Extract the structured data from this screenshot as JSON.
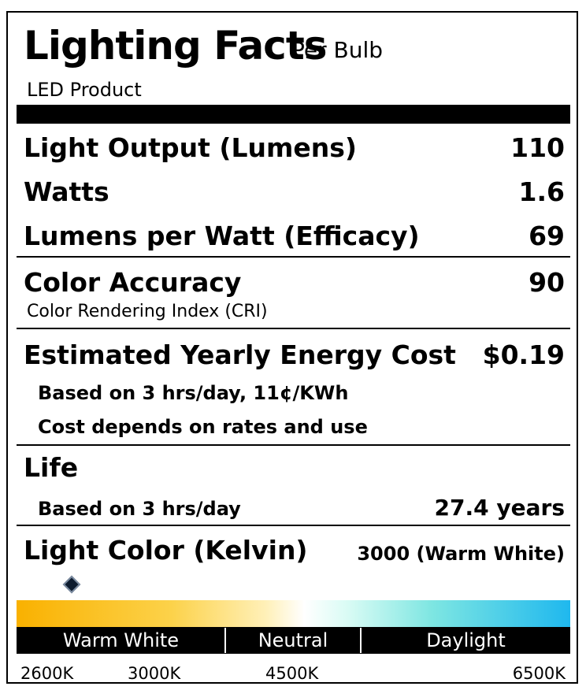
{
  "header": {
    "title": "Lighting Facts",
    "per_bulb": "Per Bulb",
    "product_type": "LED Product"
  },
  "facts": {
    "light_output_label": "Light Output (Lumens)",
    "light_output_value": "110",
    "watts_label": "Watts",
    "watts_value": "1.6",
    "efficacy_label": "Lumens per Watt (Efficacy)",
    "efficacy_value": "69",
    "color_accuracy_label": "Color Accuracy",
    "color_accuracy_value": "90",
    "cri_sublabel": "Color Rendering Index (CRI)",
    "energy_cost_label": "Estimated Yearly Energy Cost",
    "energy_cost_value": "$0.19",
    "energy_cost_note1": "Based on 3 hrs/day, 11¢/KWh",
    "energy_cost_note2": "Cost depends on rates and use",
    "life_label": "Life",
    "life_note": "Based on 3 hrs/day",
    "life_value": "27.4 years",
    "light_color_label": "Light Color (Kelvin)",
    "light_color_value": "3000 (Warm White)"
  },
  "color_scale": {
    "segments": [
      "Warm White",
      "Neutral",
      "Daylight"
    ],
    "ticks": [
      "2600K",
      "3000K",
      "4500K",
      "6500K"
    ],
    "marker_kelvin": 3000,
    "gradient_colors": [
      "#f9b100",
      "#ffffff",
      "#1fb8ee"
    ]
  }
}
